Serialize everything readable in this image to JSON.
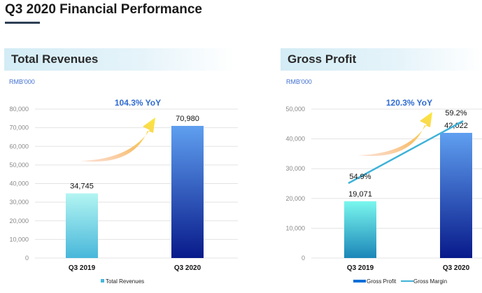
{
  "page_title": "Q3 2020 Financial Performance",
  "chart_data": [
    {
      "type": "bar",
      "title": "Total Revenues",
      "unit_label": "RMB'000",
      "categories": [
        "Q3 2019",
        "Q3 2020"
      ],
      "series": [
        {
          "name": "Total Revenues",
          "values": [
            34745,
            70980
          ],
          "labels": [
            "34,745",
            "70,980"
          ]
        }
      ],
      "ylim": [
        0,
        80000
      ],
      "yticks": [
        "0",
        "10,000",
        "20,000",
        "30,000",
        "40,000",
        "50,000",
        "60,000",
        "70,000",
        "80,000"
      ],
      "annotation": "104.3% YoY",
      "grid": true,
      "legend": "bottom",
      "colors": {
        "bar_2019_top": "#b3f5f2",
        "bar_2019_bottom": "#48b7da",
        "bar_2020_top": "#5f9ff0",
        "bar_2020_bottom": "#081a8a",
        "annotation": "#2f6bd1",
        "unit": "#3f6fd1"
      }
    },
    {
      "type": "bar+line",
      "title": "Gross Profit",
      "unit_label": "RMB'000",
      "categories": [
        "Q3 2019",
        "Q3 2020"
      ],
      "series": [
        {
          "name": "Gross Profit",
          "values": [
            19071,
            42022
          ],
          "labels": [
            "19,071",
            "42,022"
          ]
        },
        {
          "name": "Gross Margin",
          "values": [
            54.9,
            59.2
          ],
          "labels": [
            "54.9%",
            "59.2%"
          ],
          "axis": "secondary-hidden"
        }
      ],
      "ylim": [
        0,
        50000
      ],
      "yticks": [
        "0",
        "10,000",
        "20,000",
        "30,000",
        "40,000",
        "50,000"
      ],
      "annotation": "120.3% YoY",
      "grid": true,
      "legend": "bottom",
      "colors": {
        "bar_2019_top": "#7af7ee",
        "bar_2019_bottom": "#1b86b8",
        "bar_2020_top": "#5f9ff0",
        "bar_2020_bottom": "#081a8a",
        "line": "#3fb2d8",
        "legend_bar": "#0a6fd8"
      }
    }
  ]
}
